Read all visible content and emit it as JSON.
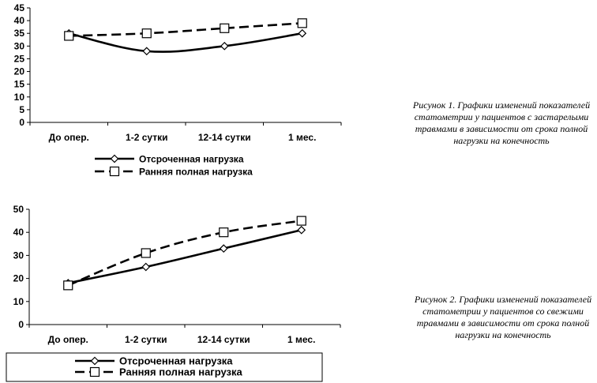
{
  "figures": [
    {
      "caption": "Рисунок 1. Графики изменений показателей статометрии у пациентов с застарелыми травмами в зависимости от срока полной нагрузки на конечность",
      "chart_data": {
        "type": "line",
        "categories": [
          "До опер.",
          "1-2 сутки",
          "12-14 сутки",
          "1 мес."
        ],
        "ylim": [
          0,
          45
        ],
        "yticks": [
          0,
          5,
          10,
          15,
          20,
          25,
          30,
          35,
          40,
          45
        ],
        "series": [
          {
            "name": "Отсроченная нагрузка",
            "values": [
              35,
              28,
              30,
              35
            ],
            "marker": "diamond",
            "line": "solid"
          },
          {
            "name": "Ранняя полная нагрузка",
            "values": [
              34,
              35,
              37,
              39
            ],
            "marker": "square",
            "line": "dashed"
          }
        ],
        "legend": "bottom",
        "grid": false
      }
    },
    {
      "caption": "Рисунок 2. Графики изменений показателей статометрии у пациентов со свежими травмами в зависимости от срока полной нагрузки на конечность",
      "chart_data": {
        "type": "line",
        "categories": [
          "До опер.",
          "1-2 сутки",
          "12-14 сутки",
          "1 мес."
        ],
        "ylim": [
          0,
          50
        ],
        "yticks": [
          0,
          10,
          20,
          30,
          40,
          50
        ],
        "series": [
          {
            "name": "Отсроченная нагрузка",
            "values": [
              18,
              25,
              33,
              41
            ],
            "marker": "diamond",
            "line": "solid"
          },
          {
            "name": "Ранняя полная нагрузка",
            "values": [
              17,
              31,
              40,
              45
            ],
            "marker": "square",
            "line": "dashed"
          }
        ],
        "legend": "bottom",
        "grid": false
      }
    }
  ]
}
